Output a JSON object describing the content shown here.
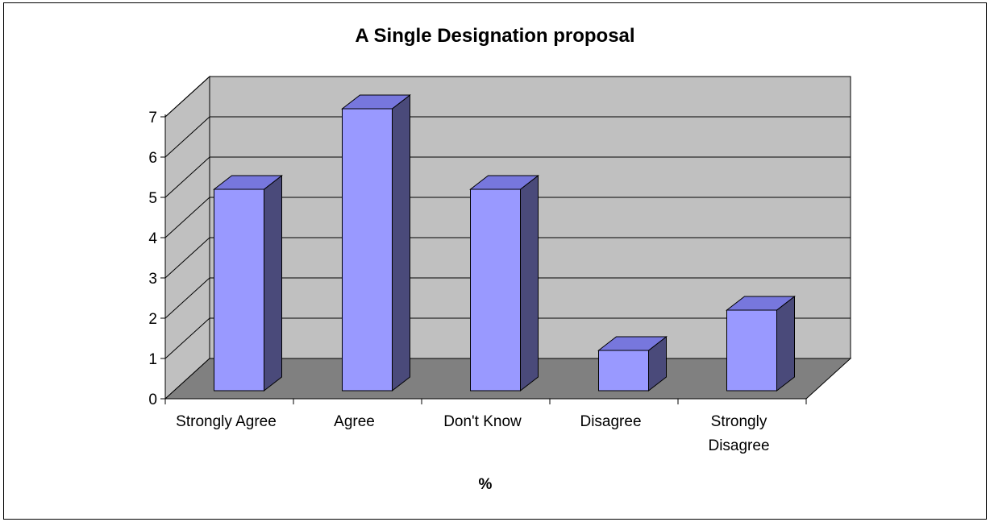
{
  "chart_data": {
    "type": "bar",
    "title": "A Single Designation proposal",
    "xlabel": "%",
    "ylabel": "",
    "categories": [
      [
        "Strongly Agree"
      ],
      [
        "Agree"
      ],
      [
        "Don't Know"
      ],
      [
        "Disagree"
      ],
      [
        "Strongly",
        "Disagree"
      ]
    ],
    "values": [
      5,
      7,
      5,
      1,
      2
    ],
    "ylim": [
      0,
      7
    ],
    "yticks": [
      "0",
      "1",
      "2",
      "3",
      "4",
      "5",
      "6",
      "7"
    ],
    "grid": true,
    "legend": "none",
    "three_d": true,
    "colors": {
      "bar_front": "#9999ff",
      "bar_top": "#7777dd",
      "bar_side": "#4a4a7a",
      "wall": "#c0c0c0",
      "floor": "#808080",
      "gridline": "#000000"
    }
  }
}
